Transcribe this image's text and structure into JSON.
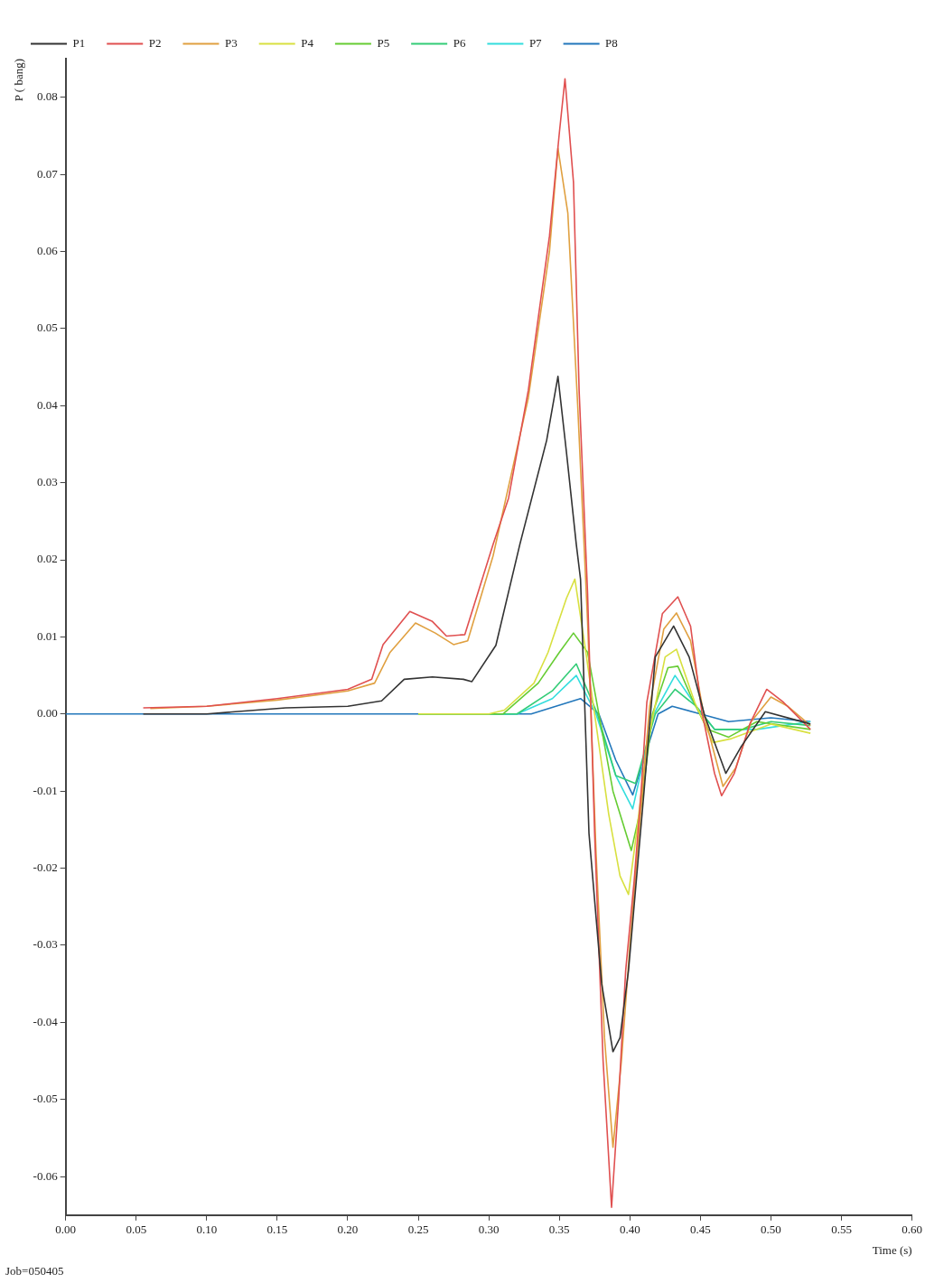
{
  "chart_data": {
    "type": "line",
    "xlabel": "Time (s)",
    "ylabel": "P ( bang)",
    "annotations": [
      "Job=050405"
    ],
    "xlim": [
      0,
      0.6
    ],
    "ylim": [
      -0.065,
      0.085
    ],
    "xticks": [
      {
        "value": 0,
        "label": "0.00"
      },
      {
        "value": 0.05,
        "label": "0.05"
      },
      {
        "value": 0.1,
        "label": "0.10"
      },
      {
        "value": 0.15,
        "label": "0.15"
      },
      {
        "value": 0.2,
        "label": "0.20"
      },
      {
        "value": 0.25,
        "label": "0.25"
      },
      {
        "value": 0.3,
        "label": "0.30"
      },
      {
        "value": 0.35,
        "label": "0.35"
      },
      {
        "value": 0.4,
        "label": "0.40"
      },
      {
        "value": 0.45,
        "label": "0.45"
      },
      {
        "value": 0.5,
        "label": "0.50"
      },
      {
        "value": 0.55,
        "label": "0.55"
      },
      {
        "value": 0.6,
        "label": "0.60"
      }
    ],
    "yticks": [
      {
        "value": -0.06,
        "label": "-0.06"
      },
      {
        "value": -0.05,
        "label": "-0.05"
      },
      {
        "value": -0.04,
        "label": "-0.04"
      },
      {
        "value": -0.03,
        "label": "-0.03"
      },
      {
        "value": -0.02,
        "label": "-0.02"
      },
      {
        "value": -0.01,
        "label": "-0.01"
      },
      {
        "value": 0,
        "label": "0.00"
      },
      {
        "value": 0.01,
        "label": "0.01"
      },
      {
        "value": 0.02,
        "label": "0.02"
      },
      {
        "value": 0.03,
        "label": "0.03"
      },
      {
        "value": 0.04,
        "label": "0.04"
      },
      {
        "value": 0.05,
        "label": "0.05"
      },
      {
        "value": 0.06,
        "label": "0.06"
      },
      {
        "value": 0.07,
        "label": "0.07"
      },
      {
        "value": 0.08,
        "label": "0.08"
      }
    ],
    "grid": false,
    "legend": "top",
    "marker": "none",
    "line_style": "solid",
    "series": [
      {
        "name": "P1",
        "color": "#333333",
        "x": [
          0.055,
          0.1,
          0.156,
          0.2,
          0.224,
          0.24,
          0.26,
          0.282,
          0.288,
          0.305,
          0.322,
          0.341,
          0.349,
          0.355,
          0.362,
          0.365,
          0.371,
          0.38,
          0.388,
          0.393,
          0.399,
          0.41,
          0.418,
          0.431,
          0.442,
          0.453,
          0.468,
          0.479,
          0.496,
          0.518,
          0.528
        ],
        "values": [
          0,
          0,
          0.0008,
          0.001,
          0.0017,
          0.0045,
          0.0048,
          0.0045,
          0.0042,
          0.0089,
          0.022,
          0.0355,
          0.0438,
          0.034,
          0.022,
          0.0175,
          -0.0155,
          -0.035,
          -0.0438,
          -0.042,
          -0.0333,
          -0.0101,
          0.0074,
          0.0114,
          0.0074,
          -0.0002,
          -0.0077,
          -0.0042,
          0.0003,
          -0.0008,
          -0.0013
        ]
      },
      {
        "name": "P2",
        "color": "#e05050",
        "x": [
          0.055,
          0.1,
          0.15,
          0.2,
          0.217,
          0.225,
          0.244,
          0.26,
          0.27,
          0.283,
          0.303,
          0.314,
          0.328,
          0.343,
          0.35,
          0.354,
          0.36,
          0.364,
          0.37,
          0.375,
          0.381,
          0.387,
          0.392,
          0.397,
          0.403,
          0.408,
          0.412,
          0.423,
          0.434,
          0.443,
          0.451,
          0.46,
          0.465,
          0.474,
          0.485,
          0.497,
          0.509,
          0.528
        ],
        "values": [
          0.0008,
          0.001,
          0.002,
          0.0032,
          0.0045,
          0.009,
          0.0133,
          0.012,
          0.0101,
          0.0103,
          0.022,
          0.028,
          0.042,
          0.062,
          0.0754,
          0.0824,
          0.069,
          0.042,
          0.0157,
          -0.0155,
          -0.045,
          -0.064,
          -0.05,
          -0.0333,
          -0.0217,
          -0.01,
          0.0015,
          0.013,
          0.0152,
          0.0114,
          0.0003,
          -0.0077,
          -0.0106,
          -0.0077,
          -0.0013,
          0.0032,
          0.0015,
          -0.002
        ]
      },
      {
        "name": "P3",
        "color": "#e0a040",
        "x": [
          0.06,
          0.1,
          0.15,
          0.2,
          0.219,
          0.23,
          0.248,
          0.262,
          0.275,
          0.285,
          0.303,
          0.328,
          0.343,
          0.349,
          0.356,
          0.363,
          0.37,
          0.376,
          0.382,
          0.388,
          0.394,
          0.4,
          0.408,
          0.414,
          0.424,
          0.433,
          0.443,
          0.452,
          0.466,
          0.475,
          0.486,
          0.5,
          0.512,
          0.528
        ],
        "values": [
          0.0007,
          0.001,
          0.0018,
          0.003,
          0.004,
          0.008,
          0.0118,
          0.0105,
          0.009,
          0.0095,
          0.0205,
          0.041,
          0.06,
          0.0734,
          0.065,
          0.04,
          0.012,
          -0.018,
          -0.042,
          -0.0562,
          -0.045,
          -0.03,
          -0.012,
          0.001,
          0.011,
          0.0131,
          0.0095,
          0.0003,
          -0.0094,
          -0.007,
          -0.001,
          0.0022,
          0.001,
          -0.0015
        ]
      },
      {
        "name": "P4",
        "color": "#d8e040",
        "x": [
          0.25,
          0.3,
          0.311,
          0.332,
          0.342,
          0.355,
          0.361,
          0.368,
          0.375,
          0.385,
          0.393,
          0.399,
          0.405,
          0.412,
          0.425,
          0.433,
          0.446,
          0.459,
          0.472,
          0.5,
          0.528
        ],
        "values": [
          0,
          0,
          0.0005,
          0.004,
          0.008,
          0.015,
          0.0175,
          0.009,
          0,
          -0.013,
          -0.021,
          -0.0234,
          -0.015,
          -0.0042,
          0.0074,
          0.0084,
          0.0015,
          -0.0037,
          -0.0032,
          -0.0013,
          -0.0025
        ]
      },
      {
        "name": "P5",
        "color": "#66cc33",
        "x": [
          0.25,
          0.31,
          0.335,
          0.35,
          0.36,
          0.37,
          0.378,
          0.388,
          0.401,
          0.408,
          0.416,
          0.427,
          0.434,
          0.444,
          0.455,
          0.47,
          0.49,
          0.528
        ],
        "values": [
          0,
          0,
          0.004,
          0.008,
          0.0105,
          0.008,
          0,
          -0.01,
          -0.0177,
          -0.012,
          0,
          0.006,
          0.0062,
          0.002,
          -0.002,
          -0.003,
          -0.001,
          -0.002
        ]
      },
      {
        "name": "P6",
        "color": "#33cc77",
        "x": [
          0.25,
          0.32,
          0.345,
          0.362,
          0.377,
          0.39,
          0.404,
          0.418,
          0.432,
          0.447,
          0.46,
          0.48,
          0.5,
          0.528
        ],
        "values": [
          0,
          0,
          0.003,
          0.0065,
          0,
          -0.008,
          -0.009,
          0,
          0.0032,
          0.001,
          -0.002,
          -0.002,
          -0.001,
          -0.0015
        ]
      },
      {
        "name": "P7",
        "color": "#33dddd",
        "x": [
          0.25,
          0.32,
          0.345,
          0.362,
          0.376,
          0.39,
          0.402,
          0.417,
          0.432,
          0.447,
          0.46,
          0.49,
          0.528
        ],
        "values": [
          0,
          0,
          0.002,
          0.005,
          0,
          -0.008,
          -0.0123,
          0,
          0.005,
          0.001,
          -0.002,
          -0.002,
          -0.001
        ]
      },
      {
        "name": "P8",
        "color": "#2277bb",
        "x": [
          0,
          0.33,
          0.365,
          0.378,
          0.39,
          0.402,
          0.42,
          0.43,
          0.45,
          0.47,
          0.5,
          0.528
        ],
        "values": [
          0,
          0,
          0.002,
          0,
          -0.006,
          -0.0105,
          0,
          0.001,
          0,
          -0.001,
          -0.0005,
          -0.001
        ]
      }
    ]
  }
}
